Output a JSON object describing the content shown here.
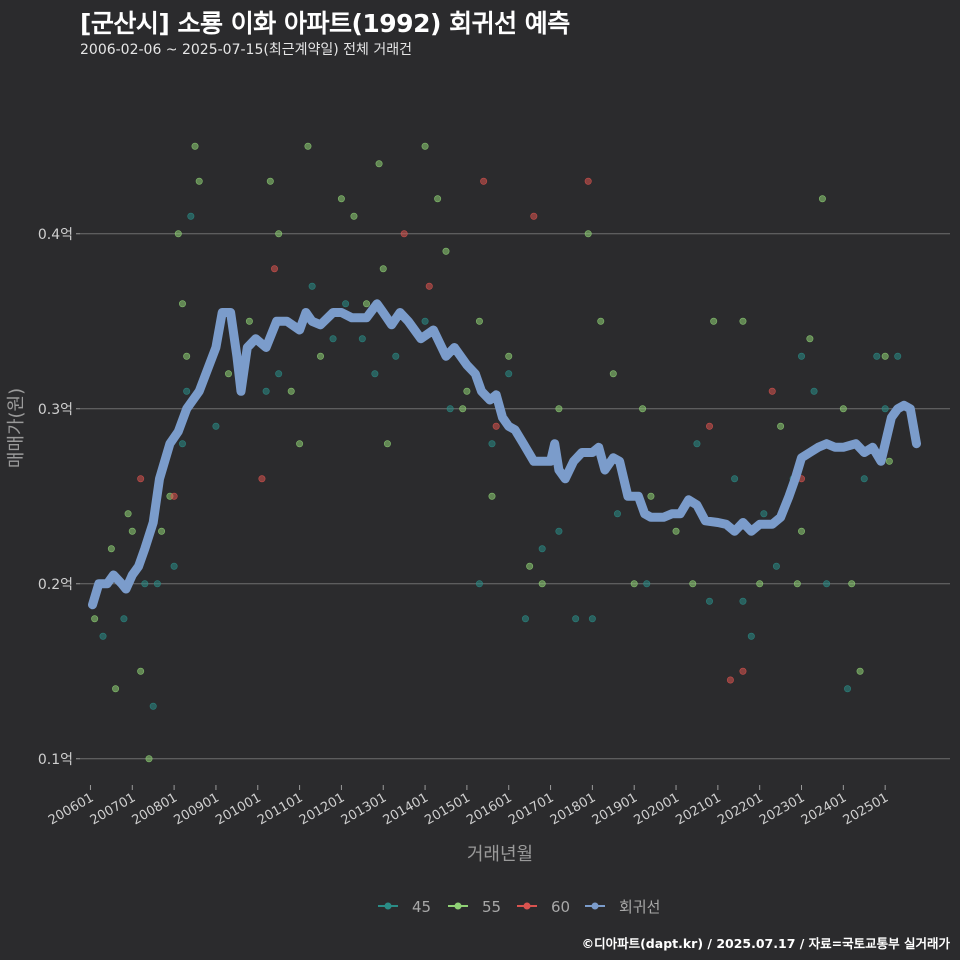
{
  "header": {
    "title": "[군산시] 소룡 이화 아파트(1992) 회귀선 예측",
    "subtitle": "2006-02-06 ~ 2025-07-15(최근계약일) 전체 거래건"
  },
  "footer": {
    "credit": "©디아파트(dapt.kr) / 2025.07.17 / 자료=국토교통부 실거래가"
  },
  "chart_data": {
    "type": "scatter",
    "title": "[군산시] 소룡 이화 아파트(1992) 회귀선 예측",
    "xlabel": "거래년월",
    "ylabel": "매매가(원)",
    "xlim": [
      2005.75,
      2026.55
    ],
    "ylim": [
      0.085,
      0.485
    ],
    "y_ticks": [
      0.1,
      0.2,
      0.3,
      0.4
    ],
    "y_tick_labels": [
      "0.1억",
      "0.2억",
      "0.3억",
      "0.4억"
    ],
    "x_ticks": [
      2006,
      2007,
      2008,
      2009,
      2010,
      2011,
      2012,
      2013,
      2014,
      2015,
      2016,
      2017,
      2018,
      2019,
      2020,
      2021,
      2022,
      2023,
      2024,
      2025
    ],
    "x_tick_labels": [
      "200601",
      "200701",
      "200801",
      "200901",
      "201001",
      "201101",
      "201201",
      "201301",
      "201401",
      "201501",
      "201601",
      "201701",
      "201801",
      "201901",
      "202001",
      "202101",
      "202201",
      "202301",
      "202401",
      "202501"
    ],
    "grid": true,
    "legend_position": "bottom",
    "series": [
      {
        "name": "45",
        "color": "#2a8c86",
        "points": [
          [
            2006.3,
            0.17
          ],
          [
            2006.8,
            0.18
          ],
          [
            2007.3,
            0.2
          ],
          [
            2007.5,
            0.13
          ],
          [
            2007.6,
            0.2
          ],
          [
            2008.0,
            0.21
          ],
          [
            2008.2,
            0.28
          ],
          [
            2008.3,
            0.31
          ],
          [
            2008.4,
            0.41
          ],
          [
            2009.0,
            0.29
          ],
          [
            2010.2,
            0.31
          ],
          [
            2010.5,
            0.32
          ],
          [
            2011.3,
            0.37
          ],
          [
            2011.8,
            0.34
          ],
          [
            2012.1,
            0.36
          ],
          [
            2012.5,
            0.34
          ],
          [
            2012.8,
            0.32
          ],
          [
            2013.3,
            0.33
          ],
          [
            2014.0,
            0.35
          ],
          [
            2014.6,
            0.3
          ],
          [
            2015.3,
            0.2
          ],
          [
            2015.6,
            0.28
          ],
          [
            2016.0,
            0.32
          ],
          [
            2016.4,
            0.18
          ],
          [
            2016.8,
            0.22
          ],
          [
            2017.2,
            0.23
          ],
          [
            2017.6,
            0.18
          ],
          [
            2018.0,
            0.18
          ],
          [
            2018.6,
            0.24
          ],
          [
            2019.3,
            0.2
          ],
          [
            2020.5,
            0.28
          ],
          [
            2020.8,
            0.19
          ],
          [
            2021.4,
            0.26
          ],
          [
            2021.6,
            0.19
          ],
          [
            2021.8,
            0.17
          ],
          [
            2022.1,
            0.24
          ],
          [
            2022.4,
            0.21
          ],
          [
            2022.8,
            0.26
          ],
          [
            2023.0,
            0.33
          ],
          [
            2023.3,
            0.31
          ],
          [
            2023.6,
            0.2
          ],
          [
            2024.1,
            0.14
          ],
          [
            2024.5,
            0.26
          ],
          [
            2024.8,
            0.33
          ],
          [
            2025.0,
            0.3
          ],
          [
            2025.3,
            0.33
          ]
        ]
      },
      {
        "name": "55",
        "color": "#8fd175",
        "points": [
          [
            2006.1,
            0.18
          ],
          [
            2006.2,
            0.2
          ],
          [
            2006.5,
            0.22
          ],
          [
            2006.6,
            0.14
          ],
          [
            2006.9,
            0.24
          ],
          [
            2007.0,
            0.23
          ],
          [
            2007.2,
            0.15
          ],
          [
            2007.4,
            0.1
          ],
          [
            2007.7,
            0.23
          ],
          [
            2007.9,
            0.25
          ],
          [
            2008.1,
            0.4
          ],
          [
            2008.2,
            0.36
          ],
          [
            2008.3,
            0.33
          ],
          [
            2008.5,
            0.45
          ],
          [
            2008.6,
            0.43
          ],
          [
            2009.3,
            0.32
          ],
          [
            2009.8,
            0.35
          ],
          [
            2010.3,
            0.43
          ],
          [
            2010.5,
            0.4
          ],
          [
            2010.8,
            0.31
          ],
          [
            2011.0,
            0.28
          ],
          [
            2011.2,
            0.45
          ],
          [
            2011.5,
            0.33
          ],
          [
            2012.0,
            0.42
          ],
          [
            2012.3,
            0.41
          ],
          [
            2012.6,
            0.36
          ],
          [
            2012.9,
            0.44
          ],
          [
            2013.0,
            0.38
          ],
          [
            2013.1,
            0.28
          ],
          [
            2014.0,
            0.45
          ],
          [
            2014.3,
            0.42
          ],
          [
            2014.5,
            0.39
          ],
          [
            2014.9,
            0.3
          ],
          [
            2015.0,
            0.31
          ],
          [
            2015.3,
            0.35
          ],
          [
            2015.6,
            0.25
          ],
          [
            2016.0,
            0.33
          ],
          [
            2016.5,
            0.21
          ],
          [
            2016.8,
            0.2
          ],
          [
            2017.2,
            0.3
          ],
          [
            2017.9,
            0.4
          ],
          [
            2018.2,
            0.35
          ],
          [
            2018.5,
            0.32
          ],
          [
            2019.0,
            0.2
          ],
          [
            2019.2,
            0.3
          ],
          [
            2019.4,
            0.25
          ],
          [
            2020.0,
            0.23
          ],
          [
            2020.4,
            0.2
          ],
          [
            2020.9,
            0.35
          ],
          [
            2021.6,
            0.35
          ],
          [
            2022.0,
            0.2
          ],
          [
            2022.5,
            0.29
          ],
          [
            2022.9,
            0.2
          ],
          [
            2023.0,
            0.23
          ],
          [
            2023.2,
            0.34
          ],
          [
            2023.5,
            0.42
          ],
          [
            2024.0,
            0.3
          ],
          [
            2024.2,
            0.2
          ],
          [
            2024.4,
            0.15
          ],
          [
            2025.0,
            0.33
          ],
          [
            2025.1,
            0.27
          ]
        ]
      },
      {
        "name": "60",
        "color": "#d9534f",
        "points": [
          [
            2007.2,
            0.26
          ],
          [
            2008.0,
            0.25
          ],
          [
            2010.1,
            0.26
          ],
          [
            2010.4,
            0.38
          ],
          [
            2013.5,
            0.4
          ],
          [
            2014.1,
            0.37
          ],
          [
            2015.4,
            0.43
          ],
          [
            2015.7,
            0.29
          ],
          [
            2016.6,
            0.41
          ],
          [
            2017.9,
            0.43
          ],
          [
            2020.8,
            0.29
          ],
          [
            2021.3,
            0.145
          ],
          [
            2021.6,
            0.15
          ],
          [
            2022.3,
            0.31
          ],
          [
            2023.0,
            0.26
          ]
        ]
      },
      {
        "name": "회귀선",
        "color": "#7b9ccb",
        "line": [
          [
            2006.05,
            0.188
          ],
          [
            2006.2,
            0.2
          ],
          [
            2006.4,
            0.2
          ],
          [
            2006.55,
            0.205
          ],
          [
            2006.75,
            0.2
          ],
          [
            2006.85,
            0.197
          ],
          [
            2007.0,
            0.205
          ],
          [
            2007.15,
            0.21
          ],
          [
            2007.3,
            0.22
          ],
          [
            2007.5,
            0.235
          ],
          [
            2007.65,
            0.26
          ],
          [
            2007.9,
            0.28
          ],
          [
            2008.1,
            0.287
          ],
          [
            2008.3,
            0.3
          ],
          [
            2008.6,
            0.31
          ],
          [
            2009.0,
            0.335
          ],
          [
            2009.15,
            0.355
          ],
          [
            2009.35,
            0.355
          ],
          [
            2009.5,
            0.33
          ],
          [
            2009.6,
            0.31
          ],
          [
            2009.75,
            0.335
          ],
          [
            2009.95,
            0.34
          ],
          [
            2010.2,
            0.335
          ],
          [
            2010.45,
            0.35
          ],
          [
            2010.7,
            0.35
          ],
          [
            2011.0,
            0.345
          ],
          [
            2011.15,
            0.355
          ],
          [
            2011.3,
            0.35
          ],
          [
            2011.5,
            0.348
          ],
          [
            2011.8,
            0.355
          ],
          [
            2012.0,
            0.355
          ],
          [
            2012.25,
            0.352
          ],
          [
            2012.6,
            0.352
          ],
          [
            2012.85,
            0.36
          ],
          [
            2013.0,
            0.355
          ],
          [
            2013.2,
            0.348
          ],
          [
            2013.4,
            0.355
          ],
          [
            2013.6,
            0.35
          ],
          [
            2013.9,
            0.34
          ],
          [
            2014.2,
            0.345
          ],
          [
            2014.5,
            0.33
          ],
          [
            2014.7,
            0.335
          ],
          [
            2015.0,
            0.325
          ],
          [
            2015.2,
            0.32
          ],
          [
            2015.35,
            0.31
          ],
          [
            2015.55,
            0.305
          ],
          [
            2015.7,
            0.308
          ],
          [
            2015.85,
            0.295
          ],
          [
            2016.0,
            0.29
          ],
          [
            2016.15,
            0.288
          ],
          [
            2016.35,
            0.28
          ],
          [
            2016.6,
            0.27
          ],
          [
            2016.8,
            0.27
          ],
          [
            2017.0,
            0.27
          ],
          [
            2017.1,
            0.28
          ],
          [
            2017.2,
            0.265
          ],
          [
            2017.35,
            0.26
          ],
          [
            2017.55,
            0.27
          ],
          [
            2017.75,
            0.275
          ],
          [
            2018.0,
            0.275
          ],
          [
            2018.15,
            0.278
          ],
          [
            2018.3,
            0.265
          ],
          [
            2018.5,
            0.272
          ],
          [
            2018.65,
            0.27
          ],
          [
            2018.85,
            0.25
          ],
          [
            2019.1,
            0.25
          ],
          [
            2019.25,
            0.24
          ],
          [
            2019.4,
            0.238
          ],
          [
            2019.7,
            0.238
          ],
          [
            2019.9,
            0.24
          ],
          [
            2020.1,
            0.24
          ],
          [
            2020.3,
            0.248
          ],
          [
            2020.5,
            0.245
          ],
          [
            2020.7,
            0.236
          ],
          [
            2021.0,
            0.235
          ],
          [
            2021.2,
            0.234
          ],
          [
            2021.4,
            0.23
          ],
          [
            2021.6,
            0.235
          ],
          [
            2021.8,
            0.23
          ],
          [
            2022.0,
            0.234
          ],
          [
            2022.3,
            0.234
          ],
          [
            2022.5,
            0.238
          ],
          [
            2022.7,
            0.25
          ],
          [
            2022.85,
            0.26
          ],
          [
            2023.0,
            0.272
          ],
          [
            2023.2,
            0.275
          ],
          [
            2023.4,
            0.278
          ],
          [
            2023.6,
            0.28
          ],
          [
            2023.8,
            0.278
          ],
          [
            2024.0,
            0.278
          ],
          [
            2024.3,
            0.28
          ],
          [
            2024.5,
            0.275
          ],
          [
            2024.7,
            0.278
          ],
          [
            2024.9,
            0.27
          ],
          [
            2025.0,
            0.28
          ],
          [
            2025.15,
            0.295
          ],
          [
            2025.3,
            0.3
          ],
          [
            2025.45,
            0.302
          ],
          [
            2025.6,
            0.3
          ],
          [
            2025.75,
            0.28
          ]
        ]
      }
    ],
    "legend": [
      "45",
      "55",
      "60",
      "회귀선"
    ]
  }
}
